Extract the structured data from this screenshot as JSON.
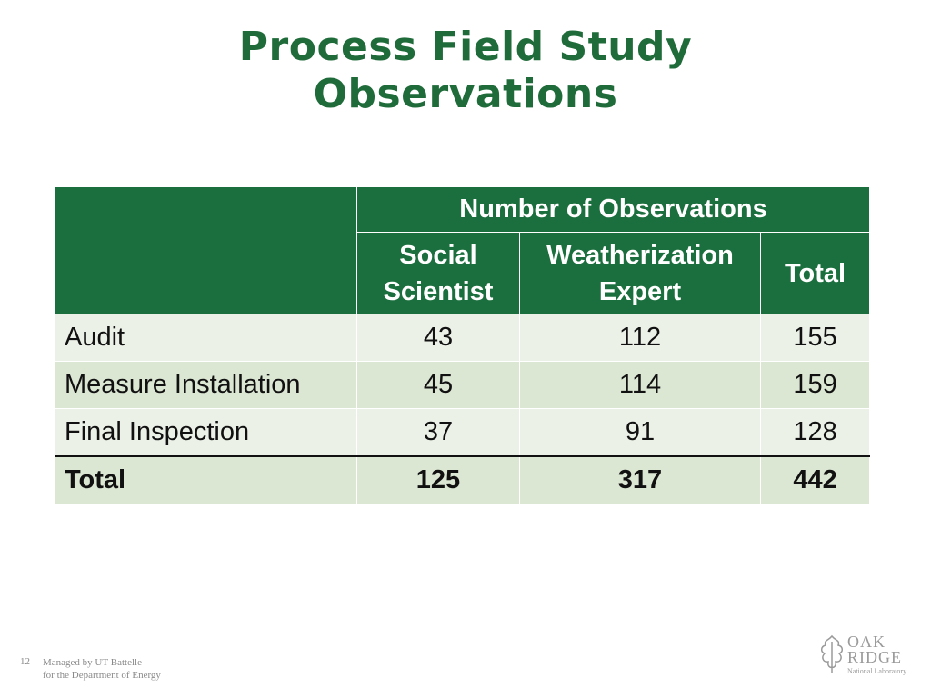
{
  "slide": {
    "title_line1": "Process Field Study",
    "title_line2": "Observations",
    "page_number": "12",
    "footer_line1": "Managed by UT-Battelle",
    "footer_line2": "for the Department of Energy",
    "logo": {
      "line1": "OAK",
      "line2": "RIDGE",
      "line3": "National Laboratory",
      "icon": "oak-leaf-icon"
    }
  },
  "table": {
    "group_header": "Number of Observations",
    "col1_line1": "Social",
    "col1_line2": "Scientist",
    "col2_line1": "Weatherization",
    "col2_line2": "Expert",
    "col3": "Total",
    "rows": [
      {
        "label": "Audit",
        "social": "43",
        "expert": "112",
        "total": "155"
      },
      {
        "label": "Measure Installation",
        "social": "45",
        "expert": "114",
        "total": "159"
      },
      {
        "label": "Final Inspection",
        "social": "37",
        "expert": "91",
        "total": "128"
      }
    ],
    "total_row": {
      "label": "Total",
      "social": "125",
      "expert": "317",
      "total": "442"
    }
  },
  "colors": {
    "accent": "#1b6e3d",
    "title": "#1f6b3a",
    "row_light": "#ecf1e8",
    "row_dark": "#dbe6d3"
  }
}
